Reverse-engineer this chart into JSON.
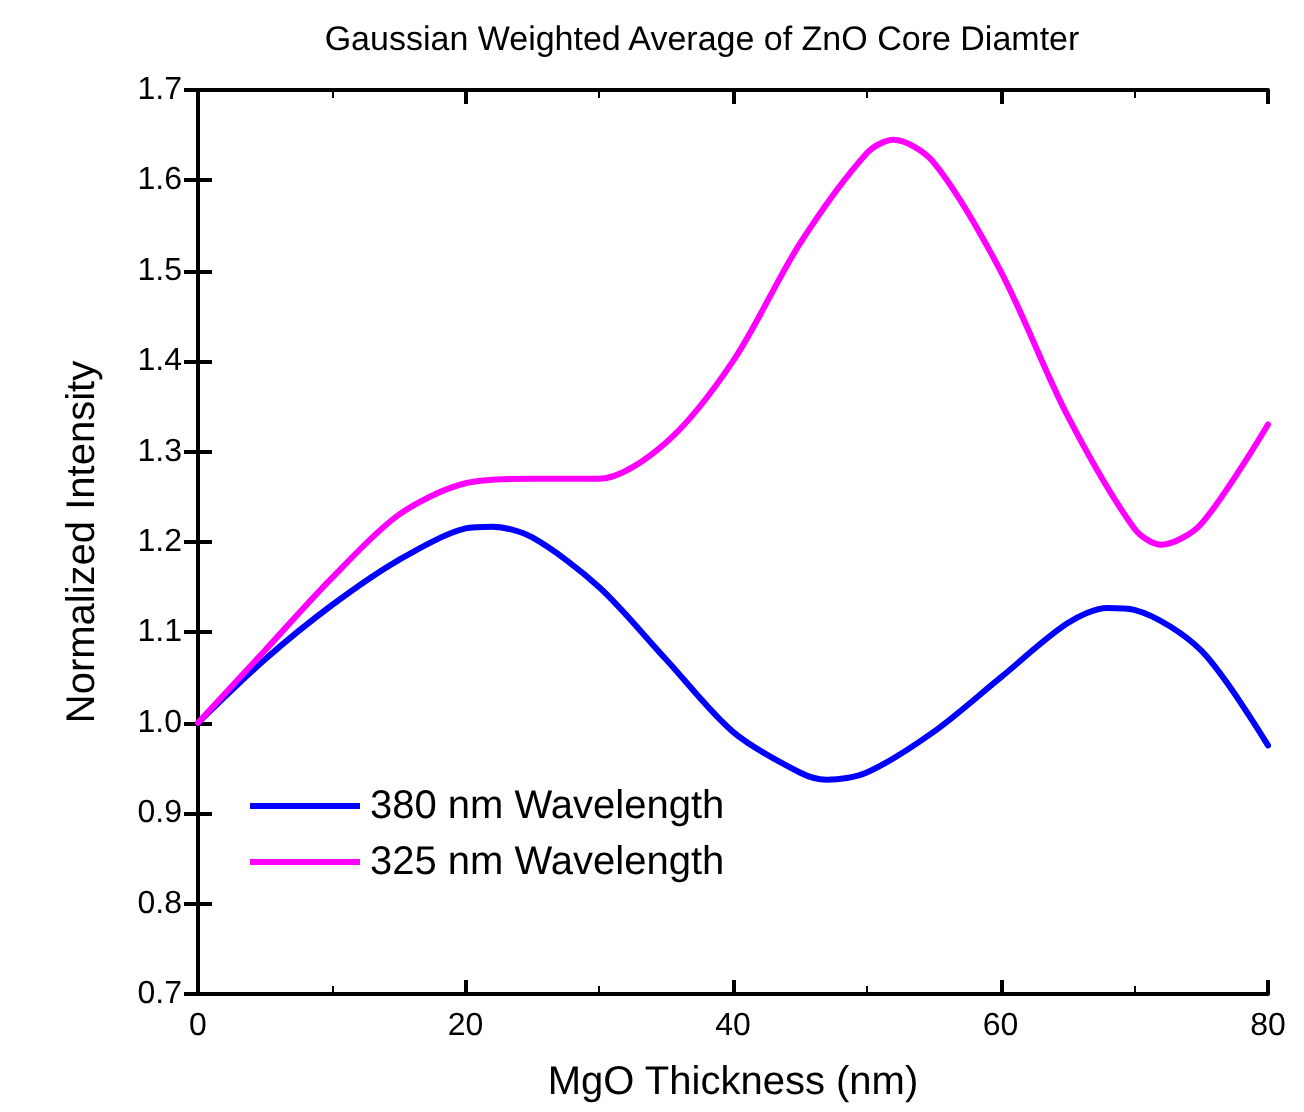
{
  "chart_data": {
    "type": "line",
    "title": "Gaussian Weighted Average of ZnO Core Diamter",
    "xlabel": "MgO Thickness (nm)",
    "ylabel": "Normalized Intensity",
    "xlim": [
      0,
      80
    ],
    "xticks": [
      0,
      20,
      40,
      60,
      80
    ],
    "ylim": [
      0.7,
      1.7
    ],
    "yticks": [
      {
        "value": 0.7,
        "label": "0.7"
      },
      {
        "value": 0.8,
        "label": "0.8"
      },
      {
        "value": 0.9,
        "label": "0.9"
      },
      {
        "value": 1.0,
        "label": "1.0"
      },
      {
        "value": 1.1,
        "label": "1.1"
      },
      {
        "value": 1.2,
        "label": "1.2"
      },
      {
        "value": 1.3,
        "label": "1.3"
      },
      {
        "value": 1.4,
        "label": "1.4"
      },
      {
        "value": 1.5,
        "label": "1.5"
      },
      {
        "value": 1.6,
        "label": "1.6"
      },
      {
        "value": 1.7,
        "label": "1.7"
      }
    ],
    "grid": false,
    "legend": "bottom left",
    "marker": "none",
    "line_style": "solid",
    "series": [
      {
        "name": "380 nm Wavelength",
        "color": "#0000ff",
        "x": [
          0,
          5,
          10,
          15,
          20,
          22,
          25,
          30,
          35,
          40,
          45,
          47,
          50,
          55,
          60,
          65,
          68,
          70,
          75,
          80
        ],
        "values": [
          1.0,
          1.07,
          1.13,
          1.18,
          1.215,
          1.217,
          1.205,
          1.15,
          1.07,
          0.99,
          0.945,
          0.937,
          0.945,
          0.99,
          1.05,
          1.11,
          1.127,
          1.125,
          1.08,
          0.975
        ]
      },
      {
        "name": "325 nm Wavelength",
        "color": "#ff00ff",
        "x": [
          0,
          5,
          10,
          15,
          20,
          25,
          30,
          35,
          40,
          45,
          50,
          52,
          55,
          60,
          65,
          70,
          72,
          75,
          80
        ],
        "values": [
          1.0,
          1.08,
          1.16,
          1.23,
          1.265,
          1.27,
          1.27,
          1.31,
          1.4,
          1.53,
          1.63,
          1.645,
          1.62,
          1.5,
          1.34,
          1.215,
          1.197,
          1.22,
          1.33
        ]
      }
    ]
  }
}
